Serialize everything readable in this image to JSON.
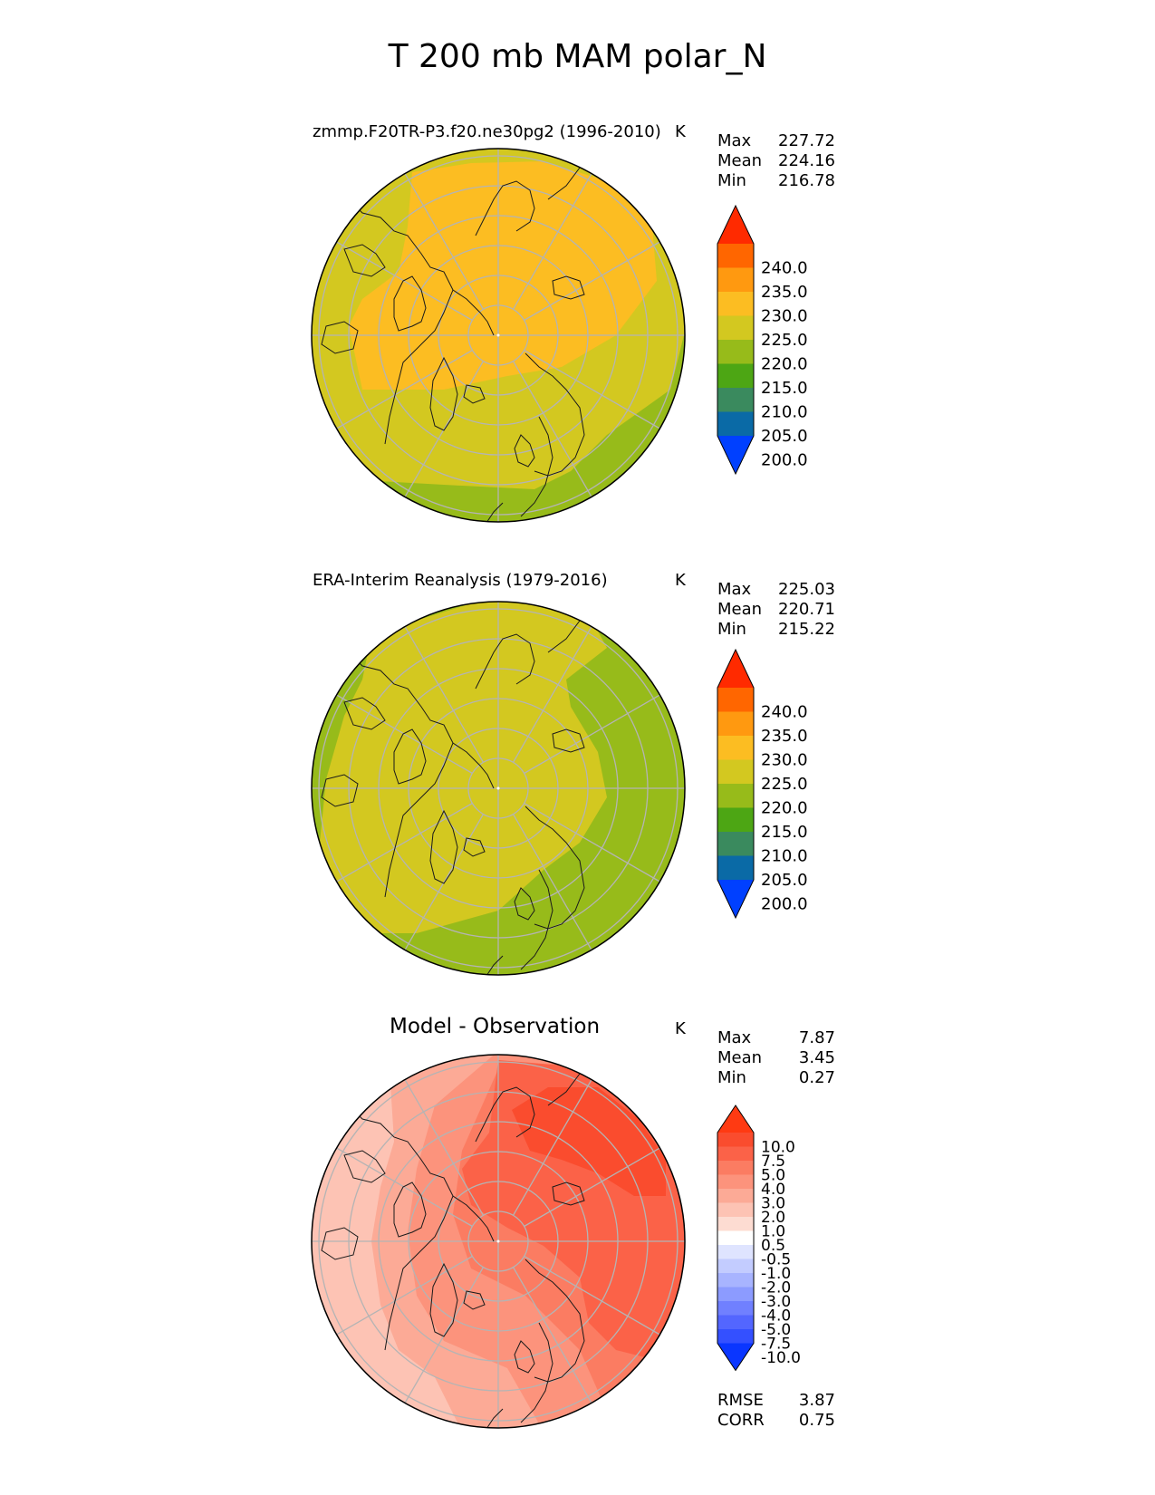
{
  "title": "T 200 mb MAM polar_N",
  "chart_data": [
    {
      "type": "heatmap",
      "name": "test",
      "projection": "north-polar-stereographic",
      "title": "zmmp.F20TR-P3.f20.ne30pg2 (1996-2010)",
      "units": "K",
      "stats": {
        "max_label": "Max",
        "max": "227.72",
        "mean_label": "Mean",
        "mean": "224.16",
        "min_label": "Min",
        "min": "216.78"
      },
      "colorbar": {
        "levels": [
          "240.0",
          "235.0",
          "230.0",
          "225.0",
          "220.0",
          "215.0",
          "210.0",
          "205.0",
          "200.0"
        ],
        "colors": [
          "#ff2a00",
          "#ff6600",
          "#ff9910",
          "#fcbd22",
          "#d3c820",
          "#97bb1a",
          "#4da614",
          "#3a8a5e",
          "#0a6aa6",
          "#0040ff"
        ]
      },
      "regions": [
        {
          "value": 227.5,
          "color": "#fcbd22",
          "description": "central Arctic basin and Siberia"
        },
        {
          "value": 222.5,
          "color": "#d3c820",
          "description": "outer ring"
        },
        {
          "value": 217.5,
          "color": "#97bb1a",
          "description": "North Atlantic / Europe sector"
        }
      ]
    },
    {
      "type": "heatmap",
      "name": "reference",
      "projection": "north-polar-stereographic",
      "title": "ERA-Interim Reanalysis (1979-2016)",
      "units": "K",
      "stats": {
        "max_label": "Max",
        "max": "225.03",
        "mean_label": "Mean",
        "mean": "220.71",
        "min_label": "Min",
        "min": "215.22"
      },
      "colorbar": {
        "levels": [
          "240.0",
          "235.0",
          "230.0",
          "225.0",
          "220.0",
          "215.0",
          "210.0",
          "205.0",
          "200.0"
        ],
        "colors": [
          "#ff2a00",
          "#ff6600",
          "#ff9910",
          "#fcbd22",
          "#d3c820",
          "#97bb1a",
          "#4da614",
          "#3a8a5e",
          "#0a6aa6",
          "#0040ff"
        ]
      },
      "regions": [
        {
          "value": 222.5,
          "color": "#d3c820",
          "description": "central Arctic"
        },
        {
          "value": 217.5,
          "color": "#97bb1a",
          "description": "Atlantic, European and Pacific margins"
        }
      ]
    },
    {
      "type": "heatmap",
      "name": "difference",
      "projection": "north-polar-stereographic",
      "title": "Model - Observation",
      "units": "K",
      "stats": {
        "max_label": "Max",
        "max": "7.87",
        "mean_label": "Mean",
        "mean": "3.45",
        "min_label": "Min",
        "min": "0.27"
      },
      "metrics": {
        "rmse_label": "RMSE",
        "rmse": "3.87",
        "corr_label": "CORR",
        "corr": "0.75"
      },
      "colorbar": {
        "levels": [
          "10.0",
          "7.5",
          "5.0",
          "4.0",
          "3.0",
          "2.0",
          "1.0",
          "0.5",
          "-0.5",
          "-1.0",
          "-2.0",
          "-3.0",
          "-4.0",
          "-5.0",
          "-7.5",
          "-10.0"
        ],
        "colors": [
          "#ff3a12",
          "#fa4c2e",
          "#fb6248",
          "#fb7c62",
          "#fc937c",
          "#fcaa96",
          "#fdc3b4",
          "#fddcd2",
          "#ffffff",
          "#dfe4ff",
          "#c3ccff",
          "#a8b4ff",
          "#8c9bff",
          "#7080ff",
          "#5366ff",
          "#3450ff",
          "#0a36ff"
        ]
      },
      "regions": [
        {
          "value": 6.0,
          "color": "#fa4c2e",
          "description": "Siberian/Pacific sector"
        },
        {
          "value": 4.5,
          "color": "#fb6248",
          "description": "Eurasian arc"
        },
        {
          "value": 3.5,
          "color": "#fb7c62",
          "description": "central Arctic"
        },
        {
          "value": 2.5,
          "color": "#fc937c",
          "description": "North America"
        },
        {
          "value": 1.5,
          "color": "#fcaa96",
          "description": "Atlantic"
        },
        {
          "value": 0.7,
          "color": "#fdc3b4",
          "description": "Atlantic / Greenland margin"
        }
      ]
    }
  ]
}
